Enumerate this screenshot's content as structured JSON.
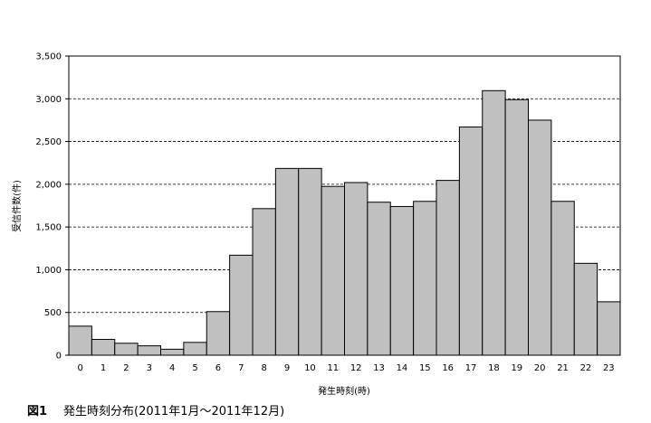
{
  "figure": {
    "label": "図1",
    "caption": "発生時刻分布(2011年1月～2011年12月)"
  },
  "chart_data": {
    "type": "bar",
    "xlabel": "発生時刻(時)",
    "ylabel": "受信件数(件)",
    "ylim": [
      0,
      3500
    ],
    "yticks": [
      "0",
      "500",
      "1,000",
      "1,500",
      "2,000",
      "2,500",
      "3,000",
      "3,500"
    ],
    "grid": "horizontal dashed",
    "bar_color": "#c0c0c0",
    "categories": [
      "0",
      "1",
      "2",
      "3",
      "4",
      "5",
      "6",
      "7",
      "8",
      "9",
      "10",
      "11",
      "12",
      "13",
      "14",
      "15",
      "16",
      "17",
      "18",
      "19",
      "20",
      "21",
      "22",
      "23"
    ],
    "values": [
      340,
      185,
      140,
      110,
      70,
      150,
      510,
      1170,
      1715,
      2185,
      2185,
      1975,
      2020,
      1790,
      1740,
      1800,
      2045,
      2670,
      3095,
      2990,
      2750,
      1800,
      1075,
      625
    ]
  }
}
